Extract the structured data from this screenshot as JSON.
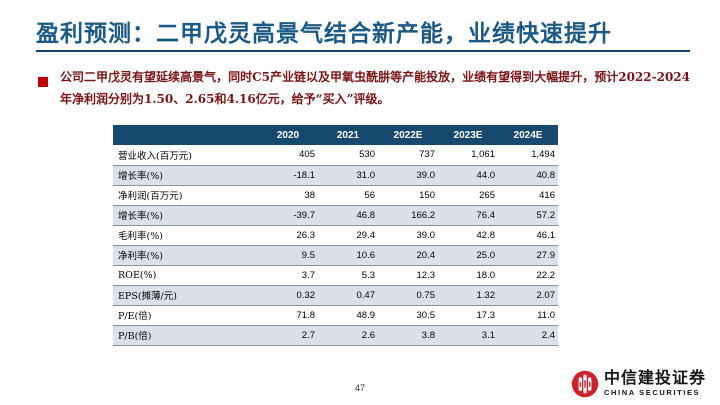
{
  "slide": {
    "title": "盈利预测：二甲戊灵高景气结合新产能，业绩快速提升",
    "bullet_text": "公司二甲戊灵有望延续高景气，同时C5产业链以及甲氧虫酰肼等产能投放，业绩有望得到大幅提升，预计2022-2024年净利润分别为1.50、2.65和4.16亿元，给予“买入”评级。",
    "page_number": "47"
  },
  "table": {
    "columns": [
      "2020",
      "2021",
      "2022E",
      "2023E",
      "2024E"
    ],
    "rows": [
      {
        "label": "营业收入(百万元)",
        "values": [
          "405",
          "530",
          "737",
          "1,061",
          "1,494"
        ],
        "shaded": false
      },
      {
        "label": "增长率(%)",
        "values": [
          "-18.1",
          "31.0",
          "39.0",
          "44.0",
          "40.8"
        ],
        "shaded": true
      },
      {
        "label": "净利润(百万元)",
        "values": [
          "38",
          "56",
          "150",
          "265",
          "416"
        ],
        "shaded": false
      },
      {
        "label": "增长率(%)",
        "values": [
          "-39.7",
          "46.8",
          "166.2",
          "76.4",
          "57.2"
        ],
        "shaded": true
      },
      {
        "label": "毛利率(%)",
        "values": [
          "26.3",
          "29.4",
          "39.0",
          "42.8",
          "46.1"
        ],
        "shaded": false
      },
      {
        "label": "净利率(%)",
        "values": [
          "9.5",
          "10.6",
          "20.4",
          "25.0",
          "27.9"
        ],
        "shaded": true
      },
      {
        "label": "ROE(%)",
        "values": [
          "3.7",
          "5.3",
          "12.3",
          "18.0",
          "22.2"
        ],
        "shaded": false
      },
      {
        "label": "EPS(摊薄/元)",
        "values": [
          "0.32",
          "0.47",
          "0.75",
          "1.32",
          "2.07"
        ],
        "shaded": true
      },
      {
        "label": "P/E(倍)",
        "values": [
          "71.8",
          "48.9",
          "30.5",
          "17.3",
          "11.0"
        ],
        "shaded": false
      },
      {
        "label": "P/B(倍)",
        "values": [
          "2.7",
          "2.6",
          "3.8",
          "3.1",
          "2.4"
        ],
        "shaded": true
      }
    ]
  },
  "logo": {
    "emblem_icon": "citic-securities-emblem",
    "name_cn": "中信建投证券",
    "name_en": "CHINA SECURITIES"
  },
  "colors": {
    "title_blue": "#1c5a85",
    "rule_navy": "#16405f",
    "bullet_red": "#c00000",
    "body_maroon": "#7a1414",
    "table_header_bg": "#17486e",
    "row_shade": "#d9e2e8",
    "logo_red": "#cc2229"
  }
}
